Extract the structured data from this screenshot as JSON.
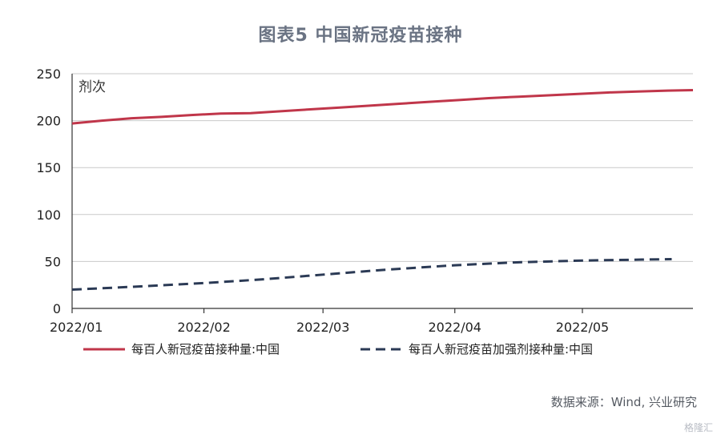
{
  "title": "图表5 中国新冠疫苗接种",
  "source": "数据来源：Wind, 兴业研究",
  "watermark": "格隆汇",
  "chart_data": {
    "type": "line",
    "y_unit": "剂次",
    "ylim": [
      0,
      250
    ],
    "yticks": [
      0,
      50,
      100,
      150,
      200,
      250
    ],
    "x_tick_labels": [
      "2022/01",
      "2022/02",
      "2022/03",
      "2022/04",
      "2022/05"
    ],
    "x_tick_dates": [
      "2022-01-01",
      "2022-02-01",
      "2022-03-01",
      "2022-04-01",
      "2022-05-01"
    ],
    "xlim": [
      "2022-01-01",
      "2022-05-27"
    ],
    "grid": "horizontal",
    "legend_position": "bottom",
    "series": [
      {
        "name": "每百人新冠疫苗接种量:中国",
        "color": "#c0364a",
        "dash": "solid",
        "points": [
          [
            "2022-01-01",
            197
          ],
          [
            "2022-01-08",
            200
          ],
          [
            "2022-01-15",
            202.5
          ],
          [
            "2022-01-22",
            204
          ],
          [
            "2022-01-29",
            206
          ],
          [
            "2022-02-05",
            207.5
          ],
          [
            "2022-02-12",
            208
          ],
          [
            "2022-02-19",
            210
          ],
          [
            "2022-02-26",
            212
          ],
          [
            "2022-03-05",
            214
          ],
          [
            "2022-03-12",
            216
          ],
          [
            "2022-03-19",
            218
          ],
          [
            "2022-03-26",
            220
          ],
          [
            "2022-04-02",
            222
          ],
          [
            "2022-04-09",
            224
          ],
          [
            "2022-04-16",
            225.5
          ],
          [
            "2022-04-23",
            227
          ],
          [
            "2022-04-30",
            228.5
          ],
          [
            "2022-05-07",
            230
          ],
          [
            "2022-05-14",
            231
          ],
          [
            "2022-05-21",
            232
          ],
          [
            "2022-05-27",
            232.5
          ]
        ]
      },
      {
        "name": "每百人新冠疫苗加强剂接种量:中国",
        "color": "#2b3a55",
        "dash": "dashed",
        "points": [
          [
            "2022-01-01",
            20
          ],
          [
            "2022-01-15",
            23
          ],
          [
            "2022-02-01",
            27
          ],
          [
            "2022-02-15",
            31
          ],
          [
            "2022-03-01",
            36
          ],
          [
            "2022-03-15",
            41
          ],
          [
            "2022-04-01",
            46
          ],
          [
            "2022-04-15",
            49
          ],
          [
            "2022-05-01",
            51
          ],
          [
            "2022-05-15",
            52
          ],
          [
            "2022-05-22",
            52.5
          ]
        ]
      }
    ]
  }
}
